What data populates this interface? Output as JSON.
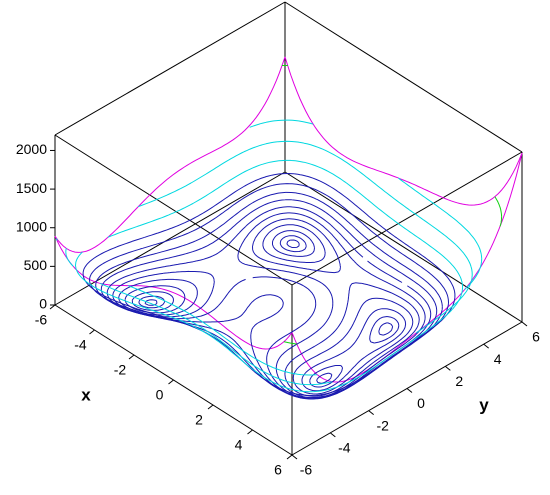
{
  "chart_data": {
    "type": "contour3d",
    "x_label": "x",
    "y_label": "y",
    "xlim": [
      -6,
      6
    ],
    "ylim": [
      -6,
      6
    ],
    "zlim": [
      0,
      2200
    ],
    "xticks": [
      -6,
      -4,
      -2,
      0,
      2,
      4,
      6
    ],
    "yticks": [
      -6,
      -4,
      -2,
      0,
      2,
      4,
      6
    ],
    "zticks": [
      0,
      500,
      1000,
      1500,
      2000
    ],
    "edge_color": "#e000e0",
    "levels": [
      {
        "value": 2,
        "color": "#1a1ab0"
      },
      {
        "value": 8,
        "color": "#1a1ab0"
      },
      {
        "value": 20,
        "color": "#1a1ab0"
      },
      {
        "value": 40,
        "color": "#1a1ab0"
      },
      {
        "value": 65,
        "color": "#1a1ab0"
      },
      {
        "value": 95,
        "color": "#1a1ab0"
      },
      {
        "value": 130,
        "color": "#1a1ab0"
      },
      {
        "value": 175,
        "color": "#1a1ab0"
      },
      {
        "value": 225,
        "color": "#1a1ab0"
      },
      {
        "value": 290,
        "color": "#1a1ab0"
      },
      {
        "value": 370,
        "color": "#1a1ab0"
      },
      {
        "value": 480,
        "color": "#00d8e0"
      },
      {
        "value": 650,
        "color": "#00d8e0"
      },
      {
        "value": 850,
        "color": "#00d8e0"
      },
      {
        "value": 1400,
        "color": "#10d010"
      }
    ]
  }
}
